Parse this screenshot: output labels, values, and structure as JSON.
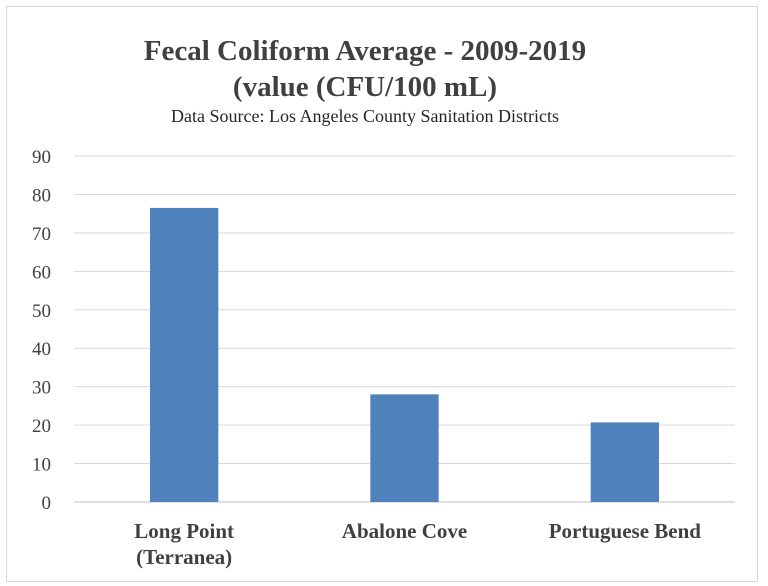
{
  "chart_data": {
    "type": "bar",
    "title_lines": [
      "Fecal Coliform Average - 2009-2019",
      "(value (CFU/100 mL)"
    ],
    "subtitle": "Data Source: Los Angeles County Sanitation Districts",
    "xlabel": "",
    "ylabel": "",
    "ylim": [
      0,
      90
    ],
    "yticks": [
      0,
      10,
      20,
      30,
      40,
      50,
      60,
      70,
      80,
      90
    ],
    "categories": [
      [
        "Long Point",
        "(Terranea)"
      ],
      [
        "Abalone Cove"
      ],
      [
        "Portuguese Bend"
      ]
    ],
    "values": [
      76.5,
      28,
      20.7
    ],
    "grid": true,
    "legend": "none",
    "colors": {
      "bar": "#4f81bd",
      "grid": "#d9d9d9",
      "axis": "#bfbfbf"
    }
  }
}
